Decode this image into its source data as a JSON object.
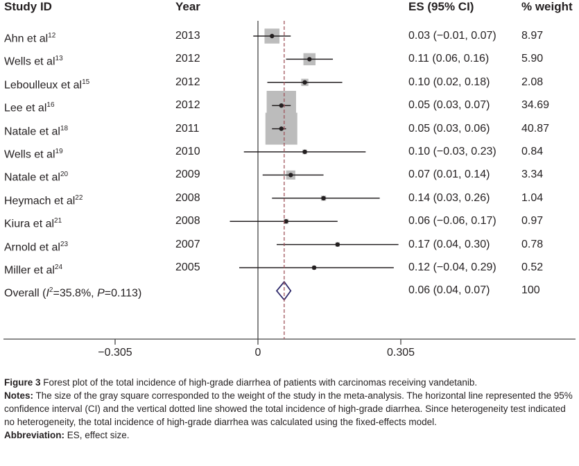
{
  "headers": {
    "study": "Study ID",
    "year": "Year",
    "es": "ES (95% CI)",
    "weight": "% weight"
  },
  "chart_data": {
    "type": "forest",
    "x_ticks": [
      {
        "value": -0.305,
        "label": "−0.305"
      },
      {
        "value": 0,
        "label": "0"
      },
      {
        "value": 0.305,
        "label": "0.305"
      }
    ],
    "xlim": [
      -0.545,
      0.67
    ],
    "reference_line": 0,
    "overall_line": 0.056,
    "studies": [
      {
        "author": "Ahn et al",
        "ref": "12",
        "year": "2013",
        "es": 0.03,
        "lo": -0.01,
        "hi": 0.07,
        "ci_text": "0.03 (−0.01, 0.07)",
        "weight": "8.97"
      },
      {
        "author": "Wells et al",
        "ref": "13",
        "year": "2012",
        "es": 0.11,
        "lo": 0.06,
        "hi": 0.16,
        "ci_text": "0.11 (0.06, 0.16)",
        "weight": "5.90"
      },
      {
        "author": "Leboulleux et al",
        "ref": "15",
        "year": "2012",
        "es": 0.1,
        "lo": 0.02,
        "hi": 0.18,
        "ci_text": "0.10 (0.02, 0.18)",
        "weight": "2.08"
      },
      {
        "author": "Lee et al",
        "ref": "16",
        "year": "2012",
        "es": 0.05,
        "lo": 0.03,
        "hi": 0.07,
        "ci_text": "0.05 (0.03, 0.07)",
        "weight": "34.69"
      },
      {
        "author": "Natale et al",
        "ref": "18",
        "year": "2011",
        "es": 0.05,
        "lo": 0.03,
        "hi": 0.06,
        "ci_text": "0.05 (0.03, 0.06)",
        "weight": "40.87"
      },
      {
        "author": "Wells et al",
        "ref": "19",
        "year": "2010",
        "es": 0.1,
        "lo": -0.03,
        "hi": 0.23,
        "ci_text": "0.10 (−0.03, 0.23)",
        "weight": "0.84"
      },
      {
        "author": "Natale et al",
        "ref": "20",
        "year": "2009",
        "es": 0.07,
        "lo": 0.01,
        "hi": 0.14,
        "ci_text": "0.07 (0.01, 0.14)",
        "weight": "3.34"
      },
      {
        "author": "Heymach et al",
        "ref": "22",
        "year": "2008",
        "es": 0.14,
        "lo": 0.03,
        "hi": 0.26,
        "ci_text": "0.14 (0.03, 0.26)",
        "weight": "1.04"
      },
      {
        "author": "Kiura et al",
        "ref": "21",
        "year": "2008",
        "es": 0.06,
        "lo": -0.06,
        "hi": 0.17,
        "ci_text": "0.06 (−0.06, 0.17)",
        "weight": "0.97"
      },
      {
        "author": "Arnold et al",
        "ref": "23",
        "year": "2007",
        "es": 0.17,
        "lo": 0.04,
        "hi": 0.3,
        "ci_text": "0.17 (0.04, 0.30)",
        "weight": "0.78"
      },
      {
        "author": "Miller et al",
        "ref": "24",
        "year": "2005",
        "es": 0.12,
        "lo": -0.04,
        "hi": 0.29,
        "ci_text": "0.12 (−0.04, 0.29)",
        "weight": "0.52"
      }
    ],
    "overall": {
      "label_prefix": "Overall (",
      "i_letter": "I",
      "i_sup": "2",
      "label_mid": "=35.8%, ",
      "p_letter": "P",
      "label_end": "=0.113)",
      "es": 0.056,
      "lo": 0.04,
      "hi": 0.07,
      "ci_text": "0.06 (0.04, 0.07)",
      "weight": "100"
    }
  },
  "caption": {
    "figure_label": "Figure 3",
    "figure_text": " Forest plot of the total incidence of high-grade diarrhea of patients with carcinomas receiving vandetanib.",
    "notes_label": "Notes:",
    "notes_text": " The size of the gray square corresponded to the weight of the study in the meta-analysis. The horizontal line represented the 95% confidence interval (CI) and the vertical dotted line showed the total incidence of high-grade diarrhea. Since heterogeneity test indicated no heterogeneity, the total incidence of high-grade diarrhea was calculated using the fixed-effects model.",
    "abbrev_label": "Abbreviation:",
    "abbrev_text": " ES, effect size."
  }
}
